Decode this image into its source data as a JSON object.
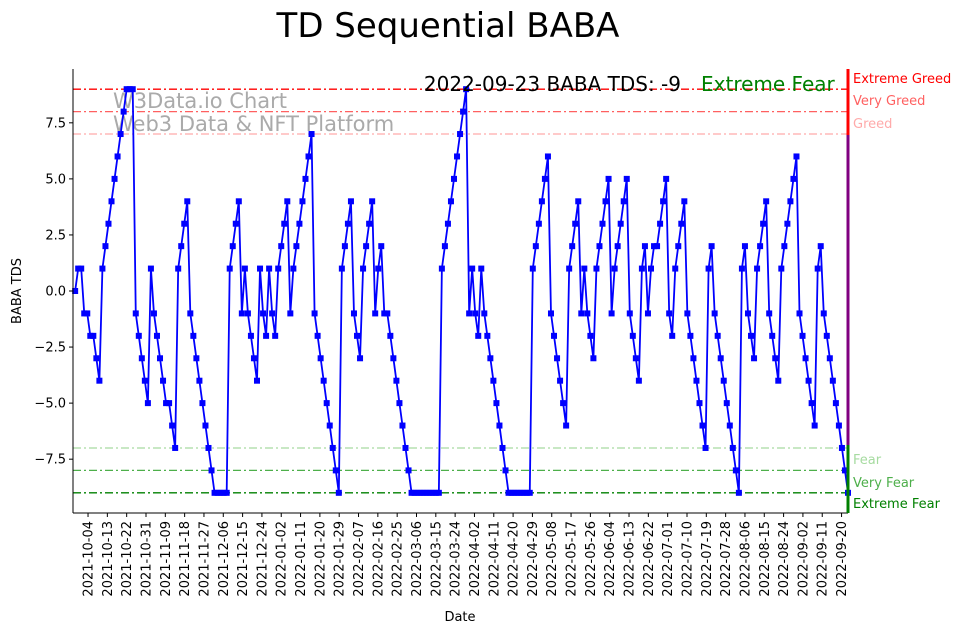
{
  "chart_data": {
    "type": "line",
    "title": "TD Sequential BABA",
    "xlabel": "Date",
    "ylabel": "BABA TDS",
    "ylim": [
      -9.9,
      9.9
    ],
    "xlim": [
      "2021-09-27",
      "2022-09-23"
    ],
    "start_date": "2021-09-28",
    "end_date": "2022-09-23",
    "yticks": [
      -7.5,
      -5.0,
      -2.5,
      0.0,
      2.5,
      5.0,
      7.5
    ],
    "ytick_labels": [
      "−7.5",
      "−5.0",
      "−2.5",
      "0.0",
      "2.5",
      "5.0",
      "7.5"
    ],
    "xtick_labels": [
      "2021-10-04",
      "2021-10-13",
      "2021-10-22",
      "2021-10-31",
      "2021-11-09",
      "2021-11-18",
      "2021-11-27",
      "2021-12-06",
      "2021-12-15",
      "2021-12-24",
      "2022-01-02",
      "2022-01-11",
      "2022-01-20",
      "2022-01-29",
      "2022-02-07",
      "2022-02-16",
      "2022-02-25",
      "2022-03-06",
      "2022-03-15",
      "2022-03-24",
      "2022-04-02",
      "2022-04-11",
      "2022-04-20",
      "2022-04-29",
      "2022-05-08",
      "2022-05-17",
      "2022-05-26",
      "2022-06-04",
      "2022-06-13",
      "2022-06-22",
      "2022-07-01",
      "2022-07-10",
      "2022-07-19",
      "2022-07-28",
      "2022-08-06",
      "2022-08-15",
      "2022-08-24",
      "2022-09-02",
      "2022-09-11",
      "2022-09-20"
    ],
    "series": [
      {
        "name": "BABA TDS",
        "color": "#0000ff",
        "values": [
          0,
          1,
          1,
          -1,
          -1,
          -2,
          -2,
          -3,
          -4,
          1,
          2,
          3,
          4,
          5,
          6,
          7,
          8,
          9,
          9,
          9,
          -1,
          -2,
          -3,
          -4,
          -5,
          1,
          -1,
          -2,
          -3,
          -4,
          -5,
          -5,
          -6,
          -7,
          1,
          2,
          3,
          4,
          -1,
          -2,
          -3,
          -4,
          -5,
          -6,
          -7,
          -8,
          -9,
          -9,
          -9,
          -9,
          -9,
          1,
          2,
          3,
          4,
          -1,
          1,
          -1,
          -2,
          -3,
          -4,
          1,
          -1,
          -2,
          1,
          -1,
          -2,
          1,
          2,
          3,
          4,
          -1,
          1,
          2,
          3,
          4,
          5,
          6,
          7,
          -1,
          -2,
          -3,
          -4,
          -5,
          -6,
          -7,
          -8,
          -9,
          1,
          2,
          3,
          4,
          -1,
          -2,
          -3,
          1,
          2,
          3,
          4,
          -1,
          1,
          2,
          -1,
          -1,
          -2,
          -3,
          -4,
          -5,
          -6,
          -7,
          -8,
          -9,
          -9,
          -9,
          -9,
          -9,
          -9,
          -9,
          -9,
          -9,
          -9,
          1,
          2,
          3,
          4,
          5,
          6,
          7,
          8,
          9,
          -1,
          1,
          -1,
          -2,
          1,
          -1,
          -2,
          -3,
          -4,
          -5,
          -6,
          -7,
          -8,
          -9,
          -9,
          -9,
          -9,
          -9,
          -9,
          -9,
          -9,
          1,
          2,
          3,
          4,
          5,
          6,
          -1,
          -2,
          -3,
          -4,
          -5,
          -6,
          1,
          2,
          3,
          4,
          -1,
          1,
          -1,
          -2,
          -3,
          1,
          2,
          3,
          4,
          5,
          -1,
          1,
          2,
          3,
          4,
          5,
          -1,
          -2,
          -3,
          -4,
          1,
          2,
          -1,
          1,
          2,
          2,
          3,
          4,
          5,
          -1,
          -2,
          1,
          2,
          3,
          4,
          -1,
          -2,
          -3,
          -4,
          -5,
          -6,
          -7,
          1,
          2,
          -1,
          -2,
          -3,
          -4,
          -5,
          -6,
          -7,
          -8,
          -9,
          1,
          2,
          -1,
          -2,
          -3,
          1,
          2,
          3,
          4,
          -1,
          -2,
          -3,
          -4,
          1,
          2,
          3,
          4,
          5,
          6,
          -1,
          -2,
          -3,
          -4,
          -5,
          -6,
          1,
          2,
          -1,
          -2,
          -3,
          -4,
          -5,
          -6,
          -7,
          -8,
          -9
        ]
      }
    ],
    "levels": [
      {
        "value": 9,
        "label": "Extreme Greed",
        "color": "#ff0000"
      },
      {
        "value": 8,
        "label": "Very Greed",
        "color": "#ff6060"
      },
      {
        "value": 7,
        "label": "Greed",
        "color": "#ffaaaa"
      },
      {
        "value": -7,
        "label": "Fear",
        "color": "#a6dba0"
      },
      {
        "value": -8,
        "label": "Very Fear",
        "color": "#4daf4a"
      },
      {
        "value": -9,
        "label": "Extreme Fear",
        "color": "#008000"
      }
    ],
    "annotation": "2022-09-23 BABA TDS: -9",
    "status": {
      "label": "Extreme Fear",
      "color": "#008000"
    },
    "watermark": [
      "W3Data.io Chart",
      "Web3 Data & NFT Platform"
    ],
    "grid": false,
    "legend": "none"
  }
}
